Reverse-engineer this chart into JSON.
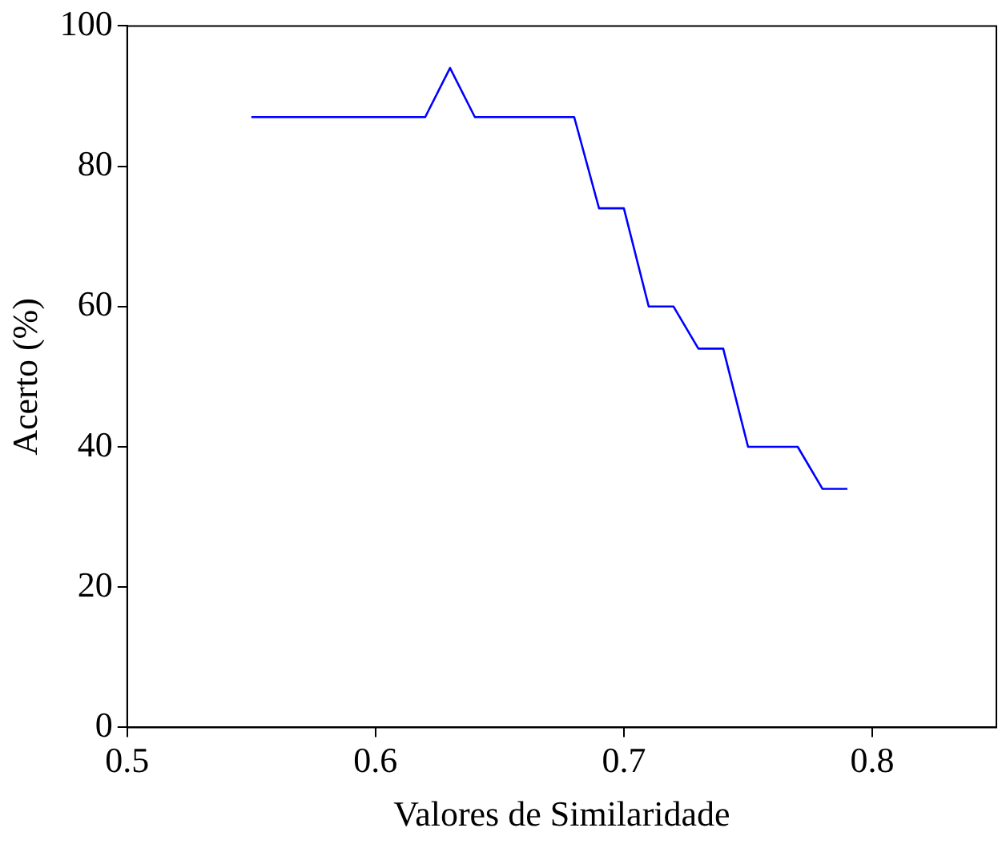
{
  "chart_data": {
    "type": "line",
    "xlabel": "Valores de Similaridade",
    "ylabel": "Acerto (%)",
    "x": [
      0.55,
      0.62,
      0.63,
      0.64,
      0.68,
      0.69,
      0.7,
      0.71,
      0.72,
      0.73,
      0.74,
      0.75,
      0.77,
      0.78,
      0.79
    ],
    "series": [
      {
        "color": "#0000ff",
        "values": [
          87,
          87,
          94,
          87,
          87,
          74,
          74,
          60,
          60,
          54,
          54,
          40,
          40,
          34,
          34
        ]
      }
    ],
    "xlim": [
      0.5,
      0.85
    ],
    "xticks": [
      0.5,
      0.6,
      0.7,
      0.8
    ],
    "ylim": [
      0,
      100
    ],
    "yticks": [
      0,
      20,
      40,
      60,
      80,
      100
    ],
    "grid": false,
    "legend": false,
    "marker": "none",
    "line_style": "solid"
  }
}
